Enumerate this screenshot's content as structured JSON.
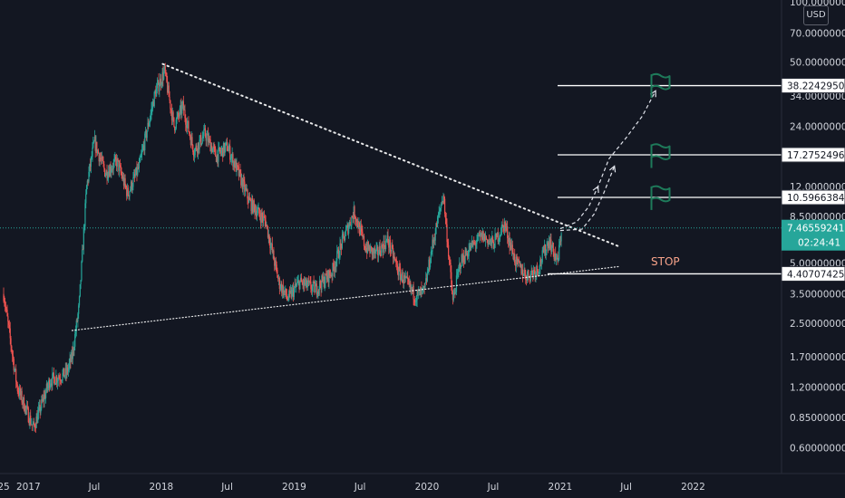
{
  "currency": "USD",
  "stop_label": "STOP",
  "colors": {
    "background": "#131722",
    "up_candle": "#26a69a",
    "down_candle": "#ef5350",
    "trendline": "#ffffff",
    "flag": "#1e7a5a",
    "current_price": "#26a69a",
    "axis_text": "#d1d4dc"
  },
  "chart_data": {
    "type": "candlestick",
    "title": "",
    "yscale": "log",
    "ylim": [
      0.45,
      100
    ],
    "xlim": [
      "2016-10-15",
      "2022-09-01"
    ],
    "y_ticks": [
      {
        "value": 100,
        "label": "100.00000000"
      },
      {
        "value": 70,
        "label": "70.00000000"
      },
      {
        "value": 50,
        "label": "50.00000000"
      },
      {
        "value": 34,
        "label": "34.00000000"
      },
      {
        "value": 24,
        "label": "24.00000000"
      },
      {
        "value": 17,
        "label": "17.00000000"
      },
      {
        "value": 12,
        "label": "12.00000000"
      },
      {
        "value": 8.5,
        "label": "8.50000000"
      },
      {
        "value": 5,
        "label": "5.00000000"
      },
      {
        "value": 3.5,
        "label": "3.50000000"
      },
      {
        "value": 2.5,
        "label": "2.50000000"
      },
      {
        "value": 1.7,
        "label": "1.70000000"
      },
      {
        "value": 1.2,
        "label": "1.20000000"
      },
      {
        "value": 0.85,
        "label": "0.85000000"
      },
      {
        "value": 0.6,
        "label": "0.60000000"
      }
    ],
    "x_ticks": [
      {
        "date": "2016-10-25",
        "label": "25"
      },
      {
        "date": "2017-01-01",
        "label": "2017"
      },
      {
        "date": "2017-07-01",
        "label": "Jul"
      },
      {
        "date": "2018-01-01",
        "label": "2018"
      },
      {
        "date": "2018-07-01",
        "label": "Jul"
      },
      {
        "date": "2019-01-01",
        "label": "2019"
      },
      {
        "date": "2019-07-01",
        "label": "Jul"
      },
      {
        "date": "2020-01-01",
        "label": "2020"
      },
      {
        "date": "2020-07-01",
        "label": "Jul"
      },
      {
        "date": "2021-01-01",
        "label": "2021"
      },
      {
        "date": "2021-07-01",
        "label": "Jul"
      },
      {
        "date": "2022-01-01",
        "label": "2022"
      }
    ],
    "price_path": [
      [
        "2016-10-25",
        3.5
      ],
      [
        "2016-12-01",
        1.2
      ],
      [
        "2017-01-15",
        0.75
      ],
      [
        "2017-03-01",
        1.3
      ],
      [
        "2017-04-15",
        1.4
      ],
      [
        "2017-05-01",
        1.7
      ],
      [
        "2017-05-20",
        3.0
      ],
      [
        "2017-06-10",
        12.0
      ],
      [
        "2017-07-01",
        20.0
      ],
      [
        "2017-08-01",
        14.0
      ],
      [
        "2017-09-01",
        16.0
      ],
      [
        "2017-10-01",
        11.0
      ],
      [
        "2017-11-01",
        15.0
      ],
      [
        "2017-12-15",
        35.0
      ],
      [
        "2018-01-10",
        45.0
      ],
      [
        "2018-02-05",
        24.0
      ],
      [
        "2018-03-01",
        30.0
      ],
      [
        "2018-04-01",
        18.0
      ],
      [
        "2018-05-01",
        22.0
      ],
      [
        "2018-06-01",
        17.0
      ],
      [
        "2018-07-01",
        19.0
      ],
      [
        "2018-08-01",
        14.0
      ],
      [
        "2018-09-01",
        10.0
      ],
      [
        "2018-10-15",
        8.0
      ],
      [
        "2018-11-20",
        4.0
      ],
      [
        "2018-12-15",
        3.3
      ],
      [
        "2019-01-15",
        4.0
      ],
      [
        "2019-03-01",
        3.7
      ],
      [
        "2019-04-15",
        4.5
      ],
      [
        "2019-05-15",
        6.5
      ],
      [
        "2019-06-15",
        9.0
      ],
      [
        "2019-07-15",
        6.0
      ],
      [
        "2019-08-15",
        5.5
      ],
      [
        "2019-09-15",
        6.5
      ],
      [
        "2019-10-15",
        4.5
      ],
      [
        "2019-12-01",
        3.4
      ],
      [
        "2019-12-25",
        3.6
      ],
      [
        "2020-01-15",
        6.0
      ],
      [
        "2020-02-15",
        11.0
      ],
      [
        "2020-03-12",
        3.2
      ],
      [
        "2020-04-01",
        5.0
      ],
      [
        "2020-05-01",
        6.0
      ],
      [
        "2020-06-01",
        6.8
      ],
      [
        "2020-07-01",
        6.2
      ],
      [
        "2020-08-01",
        7.8
      ],
      [
        "2020-09-01",
        5.0
      ],
      [
        "2020-10-01",
        4.3
      ],
      [
        "2020-11-01",
        4.7
      ],
      [
        "2020-12-01",
        6.5
      ],
      [
        "2020-12-25",
        5.0
      ],
      [
        "2021-01-05",
        7.47
      ]
    ],
    "trendlines": [
      {
        "name": "resistance",
        "from": [
          "2018-01-05",
          49
        ],
        "to": [
          "2021-06-15",
          6.0
        ]
      },
      {
        "name": "support",
        "from": [
          "2017-05-01",
          2.3
        ],
        "to": [
          "2021-06-15",
          4.8
        ]
      }
    ],
    "levels": [
      {
        "value": 38.22429503,
        "label": "38.22429503"
      },
      {
        "value": 17.2752496,
        "label": "17.27524960"
      },
      {
        "value": 10.59663841,
        "label": "10.59663841"
      },
      {
        "value": 4.40707425,
        "label": "4.40707425"
      }
    ],
    "current_price": {
      "value": 7.46559241,
      "label": "7.46559241",
      "countdown": "02:24:41"
    },
    "projection": [
      [
        "2021-01-01",
        7.4
      ],
      [
        "2021-02-15",
        8.0
      ],
      [
        "2021-03-20",
        9.5
      ],
      [
        "2021-04-15",
        12.0
      ],
      [
        "2021-05-15",
        16.5
      ],
      [
        "2021-07-01",
        21.0
      ],
      [
        "2021-08-15",
        27.0
      ],
      [
        "2021-09-20",
        36.0
      ]
    ],
    "flags": [
      {
        "date": "2021-10-01",
        "value": 10.5
      },
      {
        "date": "2021-10-01",
        "value": 17.0
      },
      {
        "date": "2021-10-01",
        "value": 38.0
      }
    ]
  }
}
